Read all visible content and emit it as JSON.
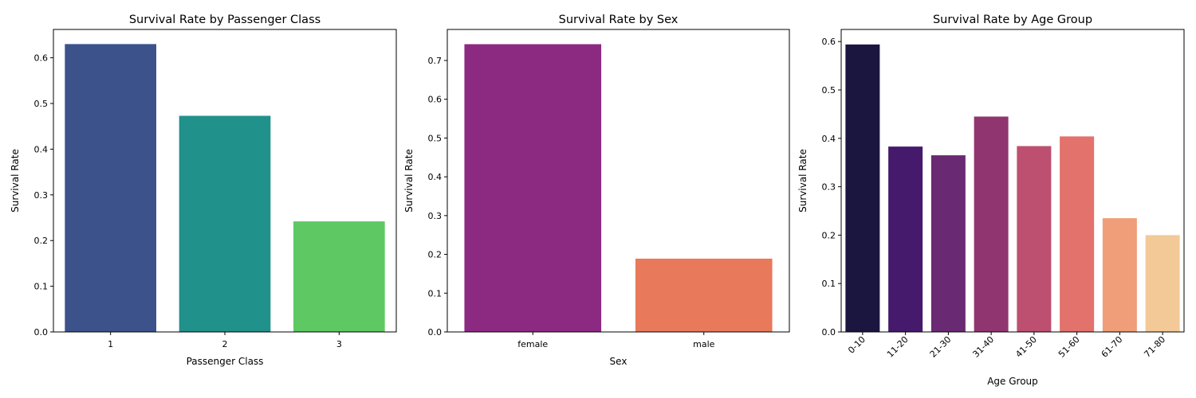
{
  "chart_data": [
    {
      "type": "bar",
      "title": "Survival Rate by Passenger Class",
      "xlabel": "Passenger Class",
      "ylabel": "Survival Rate",
      "categories": [
        "1",
        "2",
        "3"
      ],
      "values": [
        0.63,
        0.473,
        0.242
      ],
      "colors": [
        "#3b528b",
        "#21918c",
        "#5ec962"
      ],
      "ylim": [
        0,
        0.662
      ],
      "yticks": [
        "0.0",
        "0.1",
        "0.2",
        "0.3",
        "0.4",
        "0.5",
        "0.6"
      ],
      "xtick_rotation": 0,
      "grid": false,
      "legend": false
    },
    {
      "type": "bar",
      "title": "Survival Rate by Sex",
      "xlabel": "Sex",
      "ylabel": "Survival Rate",
      "categories": [
        "female",
        "male"
      ],
      "values": [
        0.742,
        0.189
      ],
      "colors": [
        "#8c2981",
        "#e8795a"
      ],
      "ylim": [
        0,
        0.78
      ],
      "yticks": [
        "0.0",
        "0.1",
        "0.2",
        "0.3",
        "0.4",
        "0.5",
        "0.6",
        "0.7"
      ],
      "xtick_rotation": 0,
      "grid": false,
      "legend": false
    },
    {
      "type": "bar",
      "title": "Survival Rate by Age Group",
      "xlabel": "Age Group",
      "ylabel": "Survival Rate",
      "categories": [
        "0-10",
        "11-20",
        "21-30",
        "31-40",
        "41-50",
        "51-60",
        "61-70",
        "71-80"
      ],
      "values": [
        0.594,
        0.383,
        0.365,
        0.445,
        0.384,
        0.404,
        0.235,
        0.2
      ],
      "colors": [
        "#1b1640",
        "#45196b",
        "#6a2a73",
        "#90356f",
        "#bd4f70",
        "#e3716c",
        "#ef9e79",
        "#f2c997"
      ],
      "ylim": [
        0,
        0.625
      ],
      "yticks": [
        "0.0",
        "0.1",
        "0.2",
        "0.3",
        "0.4",
        "0.5",
        "0.6"
      ],
      "xtick_rotation": -45,
      "grid": false,
      "legend": false
    }
  ]
}
